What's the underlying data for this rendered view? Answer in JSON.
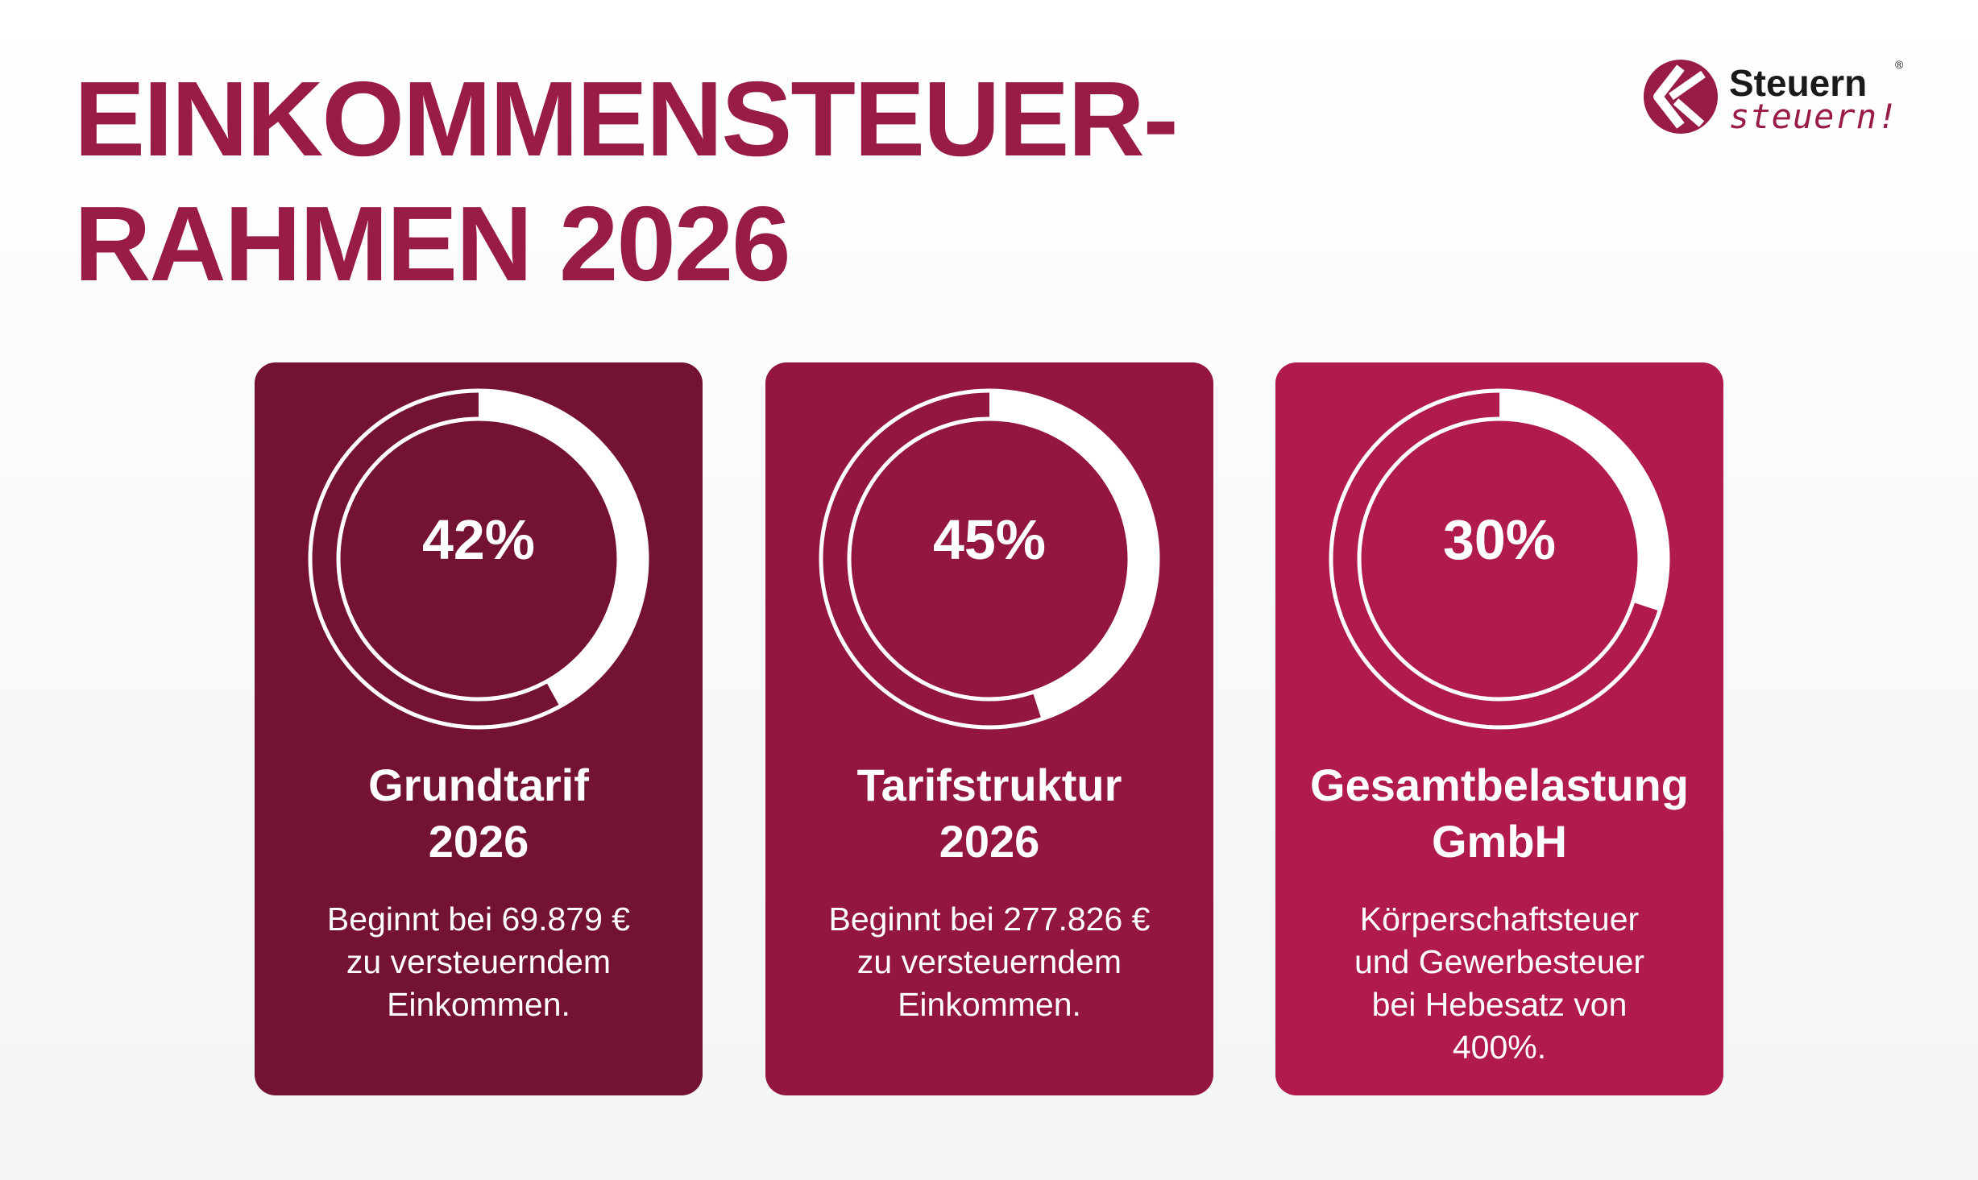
{
  "title": {
    "line1": "EINKOMMENSTEUER-",
    "line2": "RAHMEN 2026"
  },
  "logo": {
    "line1": "Steuern",
    "registered": "®",
    "line2": "steuern!"
  },
  "colors": {
    "brand": "#991b47",
    "card1": "#741231",
    "card2": "#93163f",
    "card3": "#b01b4c"
  },
  "cards": [
    {
      "value": "42%",
      "progress_percent": 42,
      "title_line1": "Grundtarif",
      "title_line2": "2026",
      "text_lines": [
        "Beginnt bei 69.879 €",
        "zu versteuerndem",
        "Einkommen."
      ]
    },
    {
      "value": "45%",
      "progress_percent": 45,
      "title_line1": "Tarifstruktur",
      "title_line2": "2026",
      "text_lines": [
        "Beginnt bei 277.826 €",
        "zu versteuerndem",
        "Einkommen."
      ]
    },
    {
      "value": "30%",
      "progress_percent": 30,
      "title_line1": "Gesamtbelastung",
      "title_line2": "GmbH",
      "text_lines": [
        "Körperschaftsteuer",
        "und Gewerbesteuer",
        "bei Hebesatz von",
        "400%."
      ]
    }
  ]
}
